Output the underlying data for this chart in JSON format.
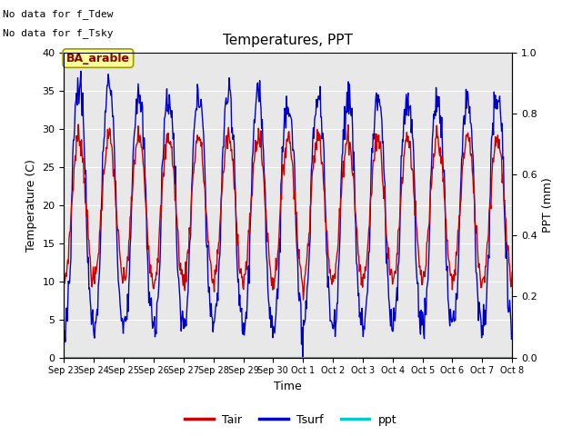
{
  "title": "Temperatures, PPT",
  "xlabel": "Time",
  "ylabel_left": "Temperature (C)",
  "ylabel_right": "PPT (mm)",
  "note1": "No data for f_Tdew",
  "note2": "No data for f_Tsky",
  "station_label": "BA_arable",
  "ylim_left": [
    0,
    40
  ],
  "ylim_right": [
    0.0,
    1.0
  ],
  "yticks_left": [
    0,
    5,
    10,
    15,
    20,
    25,
    30,
    35,
    40
  ],
  "yticks_right": [
    0.0,
    0.2,
    0.4,
    0.6,
    0.8,
    1.0
  ],
  "background_color": "#e8e8e8",
  "tair_color": "#cc0000",
  "tsurf_color": "#0000cc",
  "ppt_color": "#00cccc",
  "legend_tair": "Tair",
  "legend_tsurf": "Tsurf",
  "legend_ppt": "ppt",
  "xtick_labels": [
    "Sep 23",
    "Sep 24",
    "Sep 25",
    "Sep 26",
    "Sep 27",
    "Sep 28",
    "Sep 29",
    "Sep 30",
    "Oct 1",
    "Oct 2",
    "Oct 3",
    "Oct 4",
    "Oct 5",
    "Oct 6",
    "Oct 7",
    "Oct 8"
  ],
  "n_days": 15
}
